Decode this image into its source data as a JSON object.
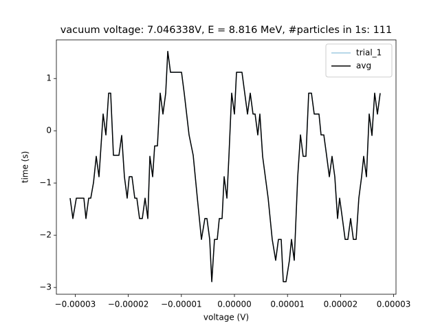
{
  "chart_data": {
    "type": "line",
    "title": "vacuum voltage: 7.046338V, E = 8.816 MeV, #particles in 1s: 111",
    "x_label": "voltage (V)",
    "y_label": "time (s)",
    "x": [
      -3.096e-05,
      -3.044e-05,
      -2.979e-05,
      -2.837e-05,
      -2.798e-05,
      -2.746e-05,
      -2.707e-05,
      -2.655e-05,
      -2.604e-05,
      -2.552e-05,
      -2.474e-05,
      -2.422e-05,
      -2.37e-05,
      -2.332e-05,
      -2.28e-05,
      -2.176e-05,
      -2.124e-05,
      -2.073e-05,
      -2.021e-05,
      -1.982e-05,
      -1.93e-05,
      -1.878e-05,
      -1.839e-05,
      -1.788e-05,
      -1.736e-05,
      -1.684e-05,
      -1.632e-05,
      -1.593e-05,
      -1.541e-05,
      -1.503e-05,
      -1.451e-05,
      -1.399e-05,
      -1.347e-05,
      -1.295e-05,
      -1.256e-05,
      -1.205e-05,
      -9.97e-06,
      -9.46e-06,
      -8.55e-06,
      -7.77e-06,
      -6.99e-06,
      -6.22e-06,
      -5.57e-06,
      -5.18e-06,
      -4.66e-06,
      -4.27e-06,
      -3.76e-06,
      -3.24e-06,
      -2.85e-06,
      -2.33e-06,
      -1.94e-06,
      -1.42e-06,
      -1.04e-06,
      -5.2e-07,
      0,
      3.9e-07,
      1.42e-06,
      1.94e-06,
      2.46e-06,
      2.98e-06,
      3.5e-06,
      3.89e-06,
      4.4e-06,
      4.79e-06,
      5.31e-06,
      6.35e-06,
      7.12e-06,
      7.77e-06,
      8.29e-06,
      8.81e-06,
      9.2e-06,
      9.72e-06,
      1.036e-05,
      1.075e-05,
      1.127e-05,
      1.192e-05,
      1.244e-05,
      1.295e-05,
      1.347e-05,
      1.399e-05,
      1.451e-05,
      1.503e-05,
      1.593e-05,
      1.632e-05,
      1.684e-05,
      1.736e-05,
      1.788e-05,
      1.839e-05,
      1.891e-05,
      1.943e-05,
      1.982e-05,
      2.034e-05,
      2.086e-05,
      2.137e-05,
      2.189e-05,
      2.241e-05,
      2.293e-05,
      2.344e-05,
      2.396e-05,
      2.435e-05,
      2.487e-05,
      2.539e-05,
      2.591e-05,
      2.642e-05,
      2.694e-05,
      2.746e-05
    ],
    "series": [
      {
        "name": "trial_1",
        "color": "#9ecae1",
        "values": [
          -1.29,
          -1.68,
          -1.29,
          -1.29,
          -1.68,
          -1.29,
          -1.29,
          -0.99,
          -0.49,
          -0.88,
          0.32,
          -0.08,
          0.72,
          0.72,
          -0.47,
          -0.47,
          -0.09,
          -0.88,
          -1.29,
          -0.88,
          -0.88,
          -1.29,
          -1.29,
          -1.68,
          -1.68,
          -1.29,
          -1.68,
          -0.49,
          -0.88,
          -0.29,
          -0.29,
          0.72,
          0.32,
          0.72,
          1.52,
          1.12,
          1.12,
          0.72,
          -0.08,
          -0.47,
          -1.29,
          -2.08,
          -1.68,
          -1.68,
          -2.08,
          -2.89,
          -2.08,
          -2.08,
          -1.68,
          -1.68,
          -0.88,
          -1.29,
          -0.49,
          0.72,
          0.32,
          1.12,
          1.12,
          0.72,
          0.32,
          0.72,
          0.32,
          0.32,
          -0.08,
          0.32,
          -0.49,
          -1.29,
          -2.08,
          -2.48,
          -2.08,
          -2.08,
          -2.89,
          -2.89,
          -2.48,
          -2.08,
          -2.48,
          -0.88,
          -0.08,
          -0.49,
          -0.49,
          0.72,
          0.72,
          0.32,
          0.32,
          -0.08,
          -0.08,
          -0.47,
          -0.88,
          -0.49,
          -0.88,
          -1.68,
          -1.29,
          -1.68,
          -2.08,
          -2.08,
          -1.68,
          -2.08,
          -2.08,
          -1.29,
          -0.88,
          -0.49,
          -0.88,
          0.32,
          -0.09,
          0.72,
          0.32,
          0.72
        ]
      },
      {
        "name": "avg",
        "color": "#000000",
        "values": [
          -1.29,
          -1.68,
          -1.29,
          -1.29,
          -1.68,
          -1.29,
          -1.29,
          -0.99,
          -0.49,
          -0.88,
          0.32,
          -0.08,
          0.72,
          0.72,
          -0.47,
          -0.47,
          -0.09,
          -0.88,
          -1.29,
          -0.88,
          -0.88,
          -1.29,
          -1.29,
          -1.68,
          -1.68,
          -1.29,
          -1.68,
          -0.49,
          -0.88,
          -0.29,
          -0.29,
          0.72,
          0.32,
          0.72,
          1.52,
          1.12,
          1.12,
          0.72,
          -0.08,
          -0.47,
          -1.29,
          -2.08,
          -1.68,
          -1.68,
          -2.08,
          -2.89,
          -2.08,
          -2.08,
          -1.68,
          -1.68,
          -0.88,
          -1.29,
          -0.49,
          0.72,
          0.32,
          1.12,
          1.12,
          0.72,
          0.32,
          0.72,
          0.32,
          0.32,
          -0.08,
          0.32,
          -0.49,
          -1.29,
          -2.08,
          -2.48,
          -2.08,
          -2.08,
          -2.89,
          -2.89,
          -2.48,
          -2.08,
          -2.48,
          -0.88,
          -0.08,
          -0.49,
          -0.49,
          0.72,
          0.72,
          0.32,
          0.32,
          -0.08,
          -0.08,
          -0.47,
          -0.88,
          -0.49,
          -0.88,
          -1.68,
          -1.29,
          -1.68,
          -2.08,
          -2.08,
          -1.68,
          -2.08,
          -2.08,
          -1.29,
          -0.88,
          -0.49,
          -0.88,
          0.32,
          -0.09,
          0.72,
          0.32,
          0.72
        ]
      }
    ],
    "xlim": [
      -3.355e-05,
      3.044e-05
    ],
    "ylim": [
      -3.13,
      1.74
    ],
    "xticks": [
      {
        "value": -3e-05,
        "label": "−0.00003"
      },
      {
        "value": -2e-05,
        "label": "−0.00002"
      },
      {
        "value": -1e-05,
        "label": "−0.00001"
      },
      {
        "value": 0,
        "label": "0.00000"
      },
      {
        "value": 1e-05,
        "label": "0.00001"
      },
      {
        "value": 2e-05,
        "label": "0.00002"
      },
      {
        "value": 3e-05,
        "label": "0.00003"
      }
    ],
    "yticks": [
      {
        "value": -3,
        "label": "−3"
      },
      {
        "value": -2,
        "label": "−2"
      },
      {
        "value": -1,
        "label": "−1"
      },
      0,
      1
    ],
    "legend": "upper right"
  }
}
